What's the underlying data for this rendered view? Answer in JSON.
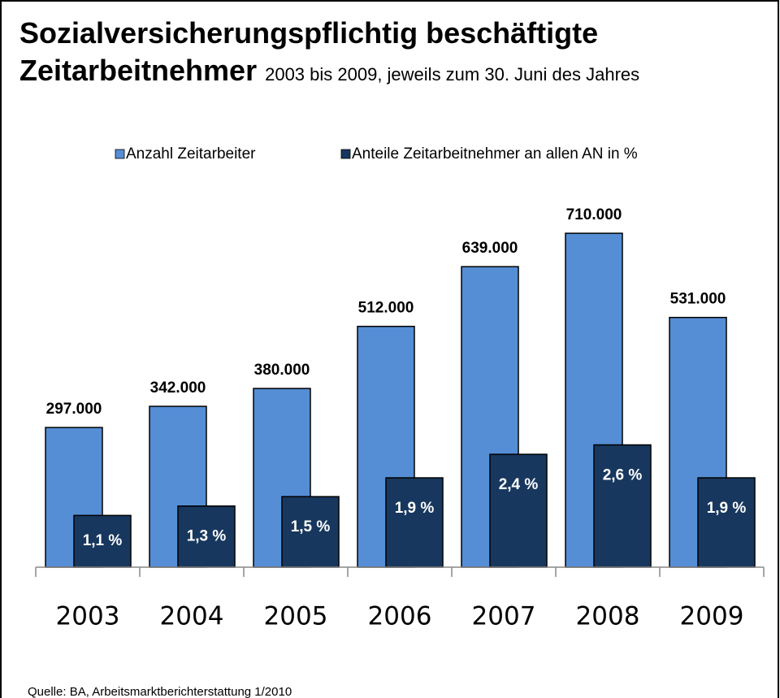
{
  "chart_data": {
    "type": "bar",
    "title": "Sozialversicherungspflichtig beschäftigte Zeitarbeitnehmer",
    "subtitle": "2003 bis 2009, jeweils zum 30. Juni des Jahres",
    "categories": [
      "2003",
      "2004",
      "2005",
      "2006",
      "2007",
      "2008",
      "2009"
    ],
    "series": [
      {
        "name": "Anzahl Zeitarbeiter",
        "color": "#558ed5",
        "values": [
          297000,
          342000,
          380000,
          512000,
          639000,
          710000,
          531000
        ],
        "value_labels": [
          "297.000",
          "342.000",
          "380.000",
          "512.000",
          "639.000",
          "710.000",
          "531.000"
        ]
      },
      {
        "name": "Anteile Zeitarbeitnehmer an allen AN in %",
        "color": "#17375e",
        "axis": "y2",
        "values": [
          1.1,
          1.3,
          1.5,
          1.9,
          2.4,
          2.6,
          1.9
        ],
        "value_labels": [
          "1,1 %",
          "1,3 %",
          "1,5 %",
          "1,9 %",
          "2,4 %",
          "2,6 %",
          "1,9 %"
        ]
      }
    ],
    "ylim": [
      0,
      800000
    ],
    "y2lim": [
      0,
      8
    ],
    "legend": "top",
    "source": "Quelle: BA, Arbeitsmarktberichterstattung 1/2010"
  }
}
